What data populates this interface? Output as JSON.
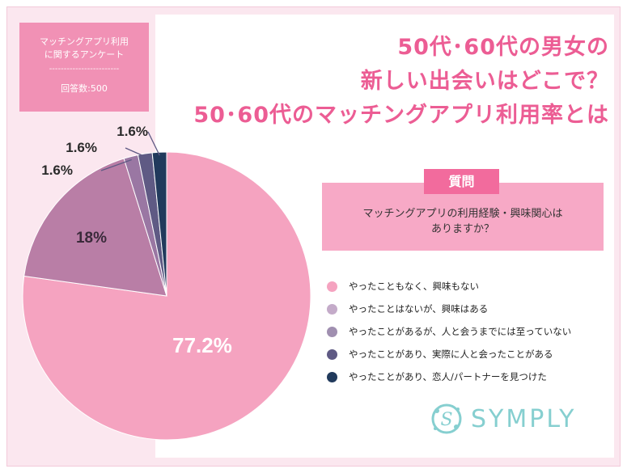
{
  "survey": {
    "title": "マッチングアプリ利用に関するアンケート",
    "line1": "マッチングアプリ利用",
    "line2": "に関するアンケート",
    "divider": "------------------------",
    "respondents": "回答数:500"
  },
  "heading": {
    "line1": "50代･60代の男女の",
    "line2": "新しい出会いはどこで？",
    "line3": "50･60代のマッチングアプリ利用率とは"
  },
  "question": {
    "tag": "質問",
    "text_line1": "マッチングアプリの利用経験・興味関心は",
    "text_line2": "ありますか？"
  },
  "brand": {
    "name": "SYMPLY"
  },
  "chart_data": {
    "type": "pie",
    "unit": "%",
    "slices": [
      {
        "label": "やったこともなく、興味もない",
        "value": 77.2,
        "display": "77.2%",
        "color": "#f5a3c0"
      },
      {
        "label": "やったことはないが、興味はある",
        "value": 18,
        "display": "18%",
        "color": "#b97ea6"
      },
      {
        "label": "やったことがあるが、人と会うまでには至っていない",
        "value": 1.6,
        "display": "1.6%",
        "color": "#9a77a3"
      },
      {
        "label": "やったことがあり、実際に人と会ったことがある",
        "value": 1.6,
        "display": "1.6%",
        "color": "#5f5a84"
      },
      {
        "label": "やったことがあり、恋人/パートナーを見つけた",
        "value": 1.6,
        "display": "1.6%",
        "color": "#213a5c"
      }
    ],
    "legend": [
      {
        "label": "やったこともなく、興味もない",
        "color": "#f5a3c0"
      },
      {
        "label": "やったことはないが、興味はある",
        "color": "#c4abc9"
      },
      {
        "label": "やったことがあるが、人と会うまでには至っていない",
        "color": "#a08fb0"
      },
      {
        "label": "やったことがあり、実際に人と会ったことがある",
        "color": "#5f5a84"
      },
      {
        "label": "やったことがあり、恋人/パートナーを見つけた",
        "color": "#213a5c"
      }
    ]
  }
}
